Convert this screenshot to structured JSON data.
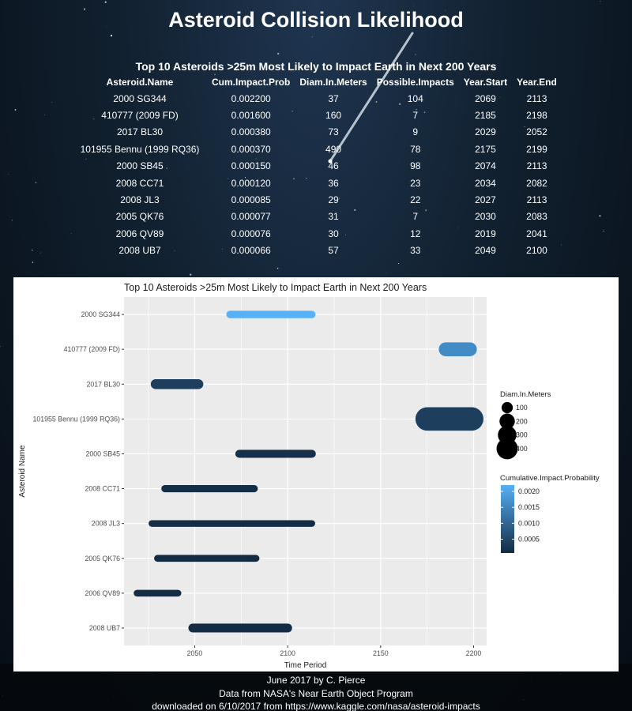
{
  "page": {
    "title": "Asteroid Collision Likelihood",
    "credits": [
      "June 2017 by C. Pierce",
      "Data from NASA's Near Earth Object Program",
      "downloaded on 6/10/2017 from https://www.kaggle.com/nasa/asteroid-impacts"
    ]
  },
  "table": {
    "caption": "Top 10 Asteroids >25m Most Likely to Impact Earth in Next 200 Years",
    "columns": [
      "Asteroid.Name",
      "Cum.Impact.Prob",
      "Diam.In.Meters",
      "Possible.Impacts",
      "Year.Start",
      "Year.End"
    ],
    "rows": [
      [
        "2000 SG344",
        "0.002200",
        "37",
        "104",
        "2069",
        "2113"
      ],
      [
        "410777 (2009 FD)",
        "0.001600",
        "160",
        "7",
        "2185",
        "2198"
      ],
      [
        "2017 BL30",
        "0.000380",
        "73",
        "9",
        "2029",
        "2052"
      ],
      [
        "101955 Bennu (1999 RQ36)",
        "0.000370",
        "490",
        "78",
        "2175",
        "2199"
      ],
      [
        "2000 SB45",
        "0.000150",
        "46",
        "98",
        "2074",
        "2113"
      ],
      [
        "2008 CC71",
        "0.000120",
        "36",
        "23",
        "2034",
        "2082"
      ],
      [
        "2008 JL3",
        "0.000085",
        "29",
        "22",
        "2027",
        "2113"
      ],
      [
        "2005 QK76",
        "0.000077",
        "31",
        "7",
        "2030",
        "2083"
      ],
      [
        "2006 QV89",
        "0.000076",
        "30",
        "12",
        "2019",
        "2041"
      ],
      [
        "2008 UB7",
        "0.000066",
        "57",
        "33",
        "2049",
        "2100"
      ]
    ]
  },
  "chart_data": {
    "type": "bar",
    "title": "Top 10 Asteroids >25m Most Likely to Impact Earth in Next 200 Years",
    "xlabel": "Time Period",
    "ylabel": "Asteroid Name",
    "xlim": [
      2012,
      2207
    ],
    "xticks": [
      2050,
      2100,
      2150,
      2200
    ],
    "grid": true,
    "legend_position": "right",
    "categories": [
      "2000 SG344",
      "410777 (2009 FD)",
      "2017 BL30",
      "101955 Bennu (1999 RQ36)",
      "2000 SB45",
      "2008 CC71",
      "2008 JL3",
      "2005 QK76",
      "2006 QV89",
      "2008 UB7"
    ],
    "series": [
      {
        "name": "Year.Start",
        "values": [
          2069,
          2185,
          2029,
          2175,
          2074,
          2034,
          2027,
          2030,
          2019,
          2049
        ]
      },
      {
        "name": "Year.End",
        "values": [
          2113,
          2198,
          2052,
          2199,
          2113,
          2082,
          2113,
          2083,
          2041,
          2100
        ]
      },
      {
        "name": "Diam.In.Meters",
        "values": [
          37,
          160,
          73,
          490,
          46,
          36,
          29,
          31,
          30,
          57
        ]
      },
      {
        "name": "Cumulative.Impact.Probability",
        "values": [
          0.0022,
          0.0016,
          0.00038,
          0.00037,
          0.00015,
          0.00012,
          8.5e-05,
          7.7e-05,
          7.6e-05,
          6.6e-05
        ]
      }
    ],
    "size_legend": {
      "title": "Diam.In.Meters",
      "labels": [
        "100",
        "200",
        "300",
        "400"
      ],
      "values": [
        100,
        200,
        300,
        400
      ]
    },
    "color_legend": {
      "title": "Cumulative.Impact.Probability",
      "labels": [
        "0.0020",
        "0.0015",
        "0.0010",
        "0.0005"
      ],
      "values": [
        0.002,
        0.0015,
        0.001,
        0.0005
      ],
      "range": [
        6.6e-05,
        0.0022
      ],
      "low_color": "#132b43",
      "high_color": "#56b1f7"
    },
    "panel_background": "#ebebeb",
    "gridline_color": "#ffffff"
  }
}
